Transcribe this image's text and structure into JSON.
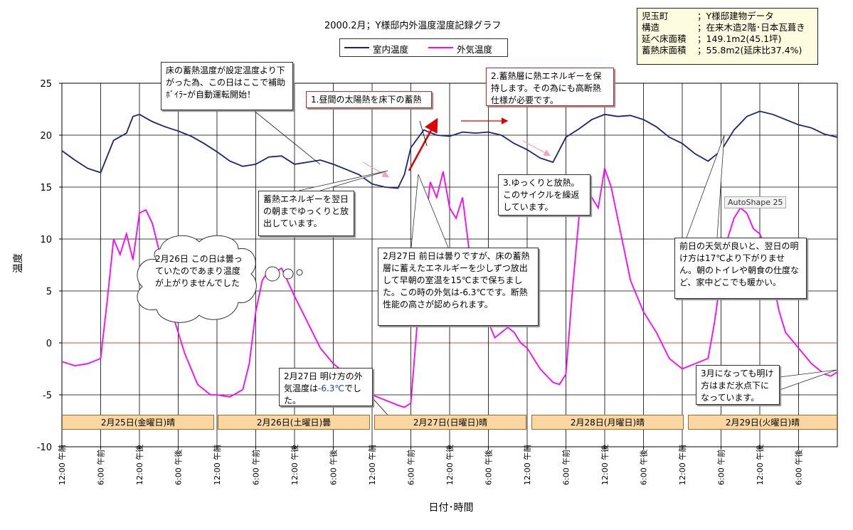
{
  "chart_data": {
    "type": "line",
    "title": "2000.2月；Y様邸内外温度湿度記録グラフ",
    "ylabel": "温度",
    "xlabel": "日付･時間",
    "ylim": [
      -10,
      25
    ],
    "yticks": [
      25,
      20,
      15,
      10,
      5,
      0,
      -5,
      -10
    ],
    "xlim_hours": [
      0,
      120
    ],
    "xtick_labels": [
      "12:00 午前",
      "6:00 午前",
      "12:00 午後",
      "6:00 午後",
      "12:00 午前",
      "6:00 午前",
      "12:00 午後",
      "6:00 午後",
      "12:00 午前",
      "6:00 午前",
      "12:00 午後",
      "6:00 午後",
      "12:00 午前",
      "6:00 午前",
      "12:00 午後",
      "6:00 午後",
      "12:00 午前",
      "6:00 午前",
      "12:00 午後",
      "6:00 午後"
    ],
    "legend": "top-center",
    "series": [
      {
        "name": "室内温度",
        "color": "#1a237e",
        "x": [
          0,
          2,
          4,
          6,
          8,
          10,
          11,
          12,
          14,
          16,
          18,
          20,
          22,
          24,
          26,
          28,
          30,
          32,
          34,
          36,
          38,
          40,
          42,
          44,
          46,
          48,
          50,
          52,
          53,
          54,
          56,
          58,
          60,
          62,
          64,
          66,
          68,
          70,
          72,
          74,
          76,
          78,
          80,
          82,
          84,
          86,
          88,
          90,
          92,
          94,
          96,
          98,
          100,
          102,
          104,
          106,
          108,
          110,
          112,
          114,
          116,
          118,
          120
        ],
        "values": [
          18.5,
          17.6,
          16.8,
          16.4,
          19.5,
          20.2,
          21.8,
          22.0,
          21.3,
          20.8,
          20.4,
          19.9,
          19.2,
          18.4,
          17.5,
          17.0,
          17.2,
          17.9,
          18.0,
          17.2,
          17.4,
          17.6,
          17.2,
          16.7,
          16.2,
          15.3,
          15.0,
          14.9,
          16.2,
          18.8,
          20.5,
          20.0,
          19.9,
          20.3,
          20.2,
          20.3,
          20.0,
          19.2,
          18.6,
          17.8,
          17.4,
          19.8,
          20.6,
          21.5,
          22.0,
          21.8,
          21.9,
          21.5,
          20.8,
          19.8,
          19.2,
          18.2,
          17.5,
          18.5,
          20.5,
          21.8,
          22.3,
          22.0,
          21.5,
          21.0,
          20.7,
          20.1,
          19.8
        ]
      },
      {
        "name": "外気温度",
        "color": "#ff00ff",
        "x": [
          0,
          2,
          4,
          6,
          7,
          8,
          9,
          10,
          11,
          12,
          13,
          14,
          15,
          16,
          17,
          18,
          19,
          20,
          21,
          22,
          23,
          24,
          26,
          28,
          29,
          30,
          31,
          32,
          33,
          34,
          36,
          38,
          40,
          42,
          44,
          46,
          48,
          50,
          52,
          53,
          54,
          55,
          56,
          57,
          58,
          59,
          60,
          61,
          62,
          63,
          64,
          65,
          66,
          67,
          68,
          69,
          70,
          71,
          72,
          74,
          76,
          77,
          78,
          79,
          80,
          81,
          82,
          83,
          84,
          85,
          86,
          87,
          88,
          89,
          90,
          92,
          94,
          96,
          98,
          100,
          101,
          102,
          103,
          104,
          105,
          106,
          107,
          108,
          109,
          110,
          111,
          112,
          114,
          116,
          118,
          119,
          120
        ],
        "values": [
          -1.8,
          -2.2,
          -2.0,
          -1.5,
          4.0,
          10.0,
          8.5,
          10.5,
          8.0,
          12.5,
          12.8,
          11.5,
          9.0,
          6.0,
          3.0,
          1.0,
          -1.0,
          -2.5,
          -4.0,
          -4.5,
          -5.0,
          -5.0,
          -5.2,
          -4.5,
          -2.0,
          3.0,
          6.0,
          7.0,
          6.8,
          7.2,
          4.5,
          2.0,
          -0.5,
          -2.0,
          -3.0,
          -4.0,
          -5.0,
          -5.5,
          -6.0,
          -6.2,
          -5.8,
          2.0,
          10.0,
          15.5,
          14.0,
          16.5,
          13.0,
          12.0,
          14.0,
          9.0,
          6.0,
          4.0,
          2.0,
          0.5,
          1.0,
          1.5,
          1.0,
          0.0,
          -0.5,
          -2.5,
          -3.8,
          -4.0,
          -3.0,
          5.0,
          12.0,
          15.5,
          14.0,
          13.0,
          16.8,
          15.0,
          12.0,
          9.0,
          6.0,
          4.5,
          3.0,
          1.0,
          -1.5,
          -2.5,
          -2.0,
          -1.5,
          2.0,
          6.5,
          10.0,
          12.0,
          13.0,
          12.5,
          11.0,
          10.5,
          9.0,
          6.0,
          3.0,
          1.0,
          -0.5,
          -2.0,
          -3.0,
          -3.2,
          -2.8
        ]
      }
    ]
  },
  "title": "2000.2月；Y様邸内外温度湿度記録グラフ",
  "legend": {
    "indoor": "室内温度",
    "outdoor": "外気温度"
  },
  "info": {
    "rows": [
      {
        "k": "児玉町",
        "v": "；Y様邸建物データ"
      },
      {
        "k": "構造",
        "v": "；在来木造2階･日本瓦葺き"
      },
      {
        "k": "延べ床面積",
        "v": "；149.1m2(45.1坪)"
      },
      {
        "k": "蓄熱床面積",
        "v": "；55.8m2(延床比37.4%)"
      }
    ]
  },
  "notes": {
    "n1": "床の蓄熱温度が設定温度より下がった為、この日はここで補助ﾎﾞｲﾗｰが自動運転開始！",
    "n2": "1.昼間の太陽熱を床下の蓄熱",
    "n3": "2.蓄熱層に熱エネルギーを保持します。その為にも高断熱仕様が必要です。",
    "n4": "蓄熱エネルギーを翌日の朝までゆっくりと放出しています。",
    "n5": "3.ゆっくりと放熱。このサイクルを繰返しています。",
    "n6": "2月26日 この日は曇っていたのであまり温度が上がりませんでした",
    "n7": "2月27日 前日は曇りですが、床の蓄熱層に蓄えたエネルギーを少しずつ放出して早朝の室温を15℃まで保ちました。この時の外気は-6.3℃です。断熱性能の高さが認められます。",
    "n8": "2月27日 明け方の外気温度は",
    "n8b": "-6.3℃",
    "n8c": "でした。",
    "n9": "前日の天気が良いと、翌日の明け方は17℃より下がりません。朝のトイレや朝食の仕度など、家中どこでも暖かい。",
    "n10": "3月になっても明け方はまだ氷点下になっています。",
    "autoshape": "AutoShape 25"
  },
  "days": [
    "2月25日(金曜日)晴",
    "2月26日(土曜日)曇",
    "2月27日(日曜日)晴",
    "2月28日(月曜日)晴",
    "2月29日(火曜日)晴"
  ]
}
